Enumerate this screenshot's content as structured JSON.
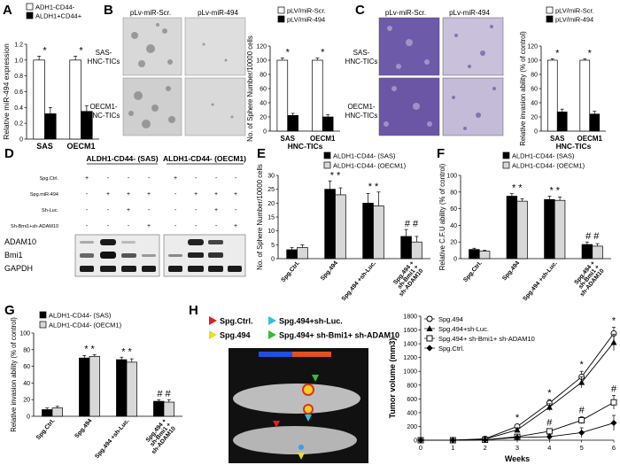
{
  "panels": {
    "A": {
      "letter": "A"
    },
    "B": {
      "letter": "B",
      "col_labels": [
        "pLv-miR-Scr.",
        "pLv-miR-494"
      ],
      "row_labels": [
        [
          "SAS-",
          "HNC-TICs"
        ],
        [
          "OECM1-",
          "HNC-TICs"
        ]
      ]
    },
    "C": {
      "letter": "C",
      "col_labels": [
        "pLv-miR-Scr.",
        "pLv-miR-494"
      ],
      "row_labels": [
        [
          "SAS-",
          "HNC-TICs"
        ],
        [
          "OECM1-",
          "HNC-TICs"
        ]
      ]
    },
    "D": {
      "letter": "D",
      "group1": "ALDH1-CD44- (SAS)",
      "group2": "ALDH1-CD44- (OECM1)",
      "row_labels": [
        "Spg.Ctrl.",
        "Spg.miR-494",
        "Sh-Luc.",
        "Sh-Bmi1+sh-ADAM10"
      ],
      "signs": [
        [
          "+",
          "-",
          "-",
          "-"
        ],
        [
          "-",
          "+",
          "+",
          "+"
        ],
        [
          "-",
          "-",
          "+",
          "-"
        ],
        [
          "-",
          "-",
          "-",
          "+"
        ]
      ],
      "blots": [
        "ADAM10",
        "Bmi1",
        "GAPDH"
      ]
    },
    "E": {
      "letter": "E"
    },
    "F": {
      "letter": "F"
    },
    "G": {
      "letter": "G"
    },
    "H": {
      "letter": "H",
      "legend": [
        {
          "label": "Spg.Ctrl.",
          "color": "#e02020"
        },
        {
          "label": "Spg.494+sh-Luc.",
          "color": "#30c0e0"
        },
        {
          "label": "Spg.494",
          "color": "#e8e020"
        },
        {
          "label": "Spg.494+ sh-Bmi1+ sh-ADAM10",
          "color": "#30c030"
        }
      ]
    }
  },
  "chart_data": [
    {
      "id": "A",
      "type": "bar",
      "ylabel": "Relative miR-494 expression",
      "ylim": [
        0,
        1.2
      ],
      "yticks": [
        "0",
        "0.2",
        "0.4",
        "0.6",
        "0.8",
        "1.0",
        "1.2"
      ],
      "categories": [
        "SAS",
        "OECM1"
      ],
      "series": [
        {
          "name": "ADH1-CD44-",
          "values": [
            1.0,
            1.0
          ],
          "errors": [
            0.05,
            0.05
          ]
        },
        {
          "name": "ALDH1+CD44+",
          "values": [
            0.32,
            0.35
          ],
          "errors": [
            0.08,
            0.07
          ]
        }
      ],
      "annotations": [
        "*",
        "*"
      ]
    },
    {
      "id": "B",
      "type": "bar",
      "ylabel": "No. of Sphere Number/10000 cells",
      "xlabel": "HNC-TICs",
      "ylim": [
        0,
        120
      ],
      "yticks": [
        "0",
        "20",
        "40",
        "60",
        "80",
        "100",
        "120"
      ],
      "categories": [
        "SAS",
        "OECM1"
      ],
      "series": [
        {
          "name": "pLV/miR-Scr.",
          "values": [
            100,
            100
          ],
          "errors": [
            3,
            3
          ]
        },
        {
          "name": "pLV/miR-494",
          "values": [
            22,
            20
          ],
          "errors": [
            3,
            3
          ]
        }
      ],
      "annotations": [
        "*",
        "*"
      ]
    },
    {
      "id": "C",
      "type": "bar",
      "ylabel": "Relative invasion ability (% of control)",
      "xlabel": "HNC-TICs",
      "ylim": [
        0,
        120
      ],
      "yticks": [
        "0",
        "20",
        "40",
        "60",
        "80",
        "100",
        "120"
      ],
      "categories": [
        "SAS",
        "OECM1"
      ],
      "series": [
        {
          "name": "pLV/miR-Scr.",
          "values": [
            100,
            100
          ],
          "errors": [
            2,
            2
          ]
        },
        {
          "name": "pLV/miR-494",
          "values": [
            27,
            24
          ],
          "errors": [
            4,
            4
          ]
        }
      ],
      "annotations": [
        "*",
        "*"
      ]
    },
    {
      "id": "E",
      "type": "bar",
      "ylabel": "No. of Sphere Number/10000 cells",
      "ylim": [
        0,
        30
      ],
      "yticks": [
        "0",
        "5",
        "10",
        "15",
        "20",
        "25",
        "30"
      ],
      "categories": [
        "Spg.Ctrl.",
        "Spg.494",
        "Spg.494 +sh-Luc.",
        "Spg.494 + sh-Bmi1 + sh-ADAM10"
      ],
      "series": [
        {
          "name": "ALDH1-CD44- (SAS)",
          "values": [
            3.2,
            25,
            20,
            8
          ],
          "errors": [
            0.8,
            3,
            3.5,
            2.5
          ]
        },
        {
          "name": "ALDH1-CD44- (OECM1)",
          "values": [
            4,
            23,
            19,
            6
          ],
          "errors": [
            1,
            2.5,
            5,
            2
          ]
        }
      ],
      "annotations": [
        "",
        "* *",
        "* *",
        "# #"
      ]
    },
    {
      "id": "F",
      "type": "bar",
      "ylabel": "Relative C.F.U ability (% of control)",
      "ylim": [
        0,
        100
      ],
      "yticks": [
        "0",
        "20",
        "40",
        "60",
        "80",
        "100"
      ],
      "categories": [
        "Spg.Ctrl.",
        "Spg.494",
        "Spg.494 +sh-Luc.",
        "Spg.494 + sh-Bmi1 + sh-ADAM10"
      ],
      "series": [
        {
          "name": "ALDH1-CD44- (SAS)",
          "values": [
            11,
            75,
            71,
            17
          ],
          "errors": [
            1.5,
            3,
            4,
            3
          ]
        },
        {
          "name": "ALDH1-CD44- (OECM1)",
          "values": [
            9,
            69,
            70,
            15
          ],
          "errors": [
            1,
            3,
            4,
            3
          ]
        }
      ],
      "annotations": [
        "",
        "* *",
        "* *",
        "# #"
      ]
    },
    {
      "id": "G",
      "type": "bar",
      "ylabel": "Relative invasion ability (% of control)",
      "ylim": [
        0,
        100
      ],
      "yticks": [
        "0",
        "20",
        "40",
        "60",
        "80",
        "100"
      ],
      "categories": [
        "Spg.Ctrl.",
        "Spg.494",
        "Spg.494 +sh-Luc.",
        "Spg.494 + sh-Bmi1 + sh-ADAM10"
      ],
      "series": [
        {
          "name": "ALDH1-CD44- (SAS)",
          "values": [
            8,
            70,
            68,
            18
          ],
          "errors": [
            2,
            3,
            3,
            2
          ]
        },
        {
          "name": "ALDH1-CD44- (OECM1)",
          "values": [
            10,
            72,
            65,
            17
          ],
          "errors": [
            2,
            2,
            4,
            3
          ]
        }
      ],
      "annotations": [
        "",
        "* *",
        "* *",
        "# #"
      ]
    },
    {
      "id": "H",
      "type": "line",
      "ylabel": "Tumor volume (mm3)",
      "xlabel": "Weeks",
      "xlim": [
        0,
        6
      ],
      "ylim": [
        0,
        1800
      ],
      "x": [
        0,
        1,
        2,
        3,
        4,
        5,
        6
      ],
      "xticks": [
        "0",
        "1",
        "2",
        "3",
        "4",
        "5",
        "6"
      ],
      "yticks": [
        "0",
        "200",
        "400",
        "600",
        "800",
        "1000",
        "1200",
        "1400",
        "1600",
        "1800"
      ],
      "series": [
        {
          "name": "Spg.494",
          "marker": "circle-open",
          "values": [
            0,
            0,
            20,
            200,
            540,
            920,
            1550
          ],
          "errors": [
            0,
            0,
            10,
            30,
            50,
            80,
            90
          ]
        },
        {
          "name": "Spg.494+sh-Luc.",
          "marker": "triangle-filled",
          "values": [
            0,
            0,
            15,
            150,
            480,
            840,
            1420
          ],
          "errors": [
            0,
            0,
            10,
            30,
            50,
            80,
            120
          ]
        },
        {
          "name": "Spg.494+ sh-Bmi1+ sh-ADAM10",
          "marker": "square-open",
          "values": [
            0,
            0,
            5,
            50,
            130,
            290,
            550
          ],
          "errors": [
            0,
            0,
            5,
            15,
            30,
            50,
            100
          ]
        },
        {
          "name": "Spg.Ctrl.",
          "marker": "diamond-filled",
          "values": [
            0,
            0,
            5,
            40,
            50,
            110,
            250
          ],
          "errors": [
            0,
            0,
            5,
            15,
            30,
            70,
            110
          ]
        }
      ],
      "annotations": [
        {
          "x": 3,
          "text": "*"
        },
        {
          "x": 4,
          "text": "*"
        },
        {
          "x": 5,
          "text": "*"
        },
        {
          "x": 6,
          "text": "*"
        },
        {
          "x": 4,
          "text": "#"
        },
        {
          "x": 5,
          "text": "#"
        },
        {
          "x": 6,
          "text": "#"
        }
      ]
    }
  ]
}
